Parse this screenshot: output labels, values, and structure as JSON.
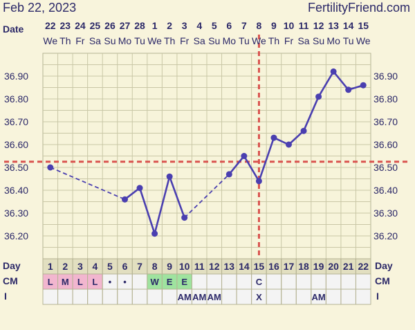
{
  "header": {
    "date": "Feb 22, 2023",
    "site": "FertilityFriend.com"
  },
  "row_labels": {
    "date": "Date",
    "day": "Day",
    "cm": "CM",
    "i": "I"
  },
  "columns": [
    {
      "date": "22",
      "dow": "We",
      "day": "1",
      "cm": "L",
      "cm_color": "#f2b6cf",
      "i": ""
    },
    {
      "date": "23",
      "dow": "Th",
      "day": "2",
      "cm": "M",
      "cm_color": "#f2b6cf",
      "i": ""
    },
    {
      "date": "24",
      "dow": "Fr",
      "day": "3",
      "cm": "L",
      "cm_color": "#f2b6cf",
      "i": ""
    },
    {
      "date": "25",
      "dow": "Sa",
      "day": "4",
      "cm": "L",
      "cm_color": "#f2b6cf",
      "i": ""
    },
    {
      "date": "26",
      "dow": "Su",
      "day": "5",
      "cm": "•",
      "cm_color": "",
      "i": ""
    },
    {
      "date": "27",
      "dow": "Mo",
      "day": "6",
      "cm": "•",
      "cm_color": "",
      "i": ""
    },
    {
      "date": "28",
      "dow": "Tu",
      "day": "7",
      "cm": "",
      "cm_color": "",
      "i": ""
    },
    {
      "date": "1",
      "dow": "We",
      "day": "8",
      "cm": "W",
      "cm_color": "#9fe39f",
      "i": ""
    },
    {
      "date": "2",
      "dow": "Th",
      "day": "9",
      "cm": "E",
      "cm_color": "#9fe39f",
      "i": ""
    },
    {
      "date": "3",
      "dow": "Fr",
      "day": "10",
      "cm": "E",
      "cm_color": "#9fe39f",
      "i": "AM"
    },
    {
      "date": "4",
      "dow": "Sa",
      "day": "11",
      "cm": "",
      "cm_color": "",
      "i": "AM"
    },
    {
      "date": "5",
      "dow": "Su",
      "day": "12",
      "cm": "",
      "cm_color": "",
      "i": "AM"
    },
    {
      "date": "6",
      "dow": "Mo",
      "day": "13",
      "cm": "",
      "cm_color": "",
      "i": ""
    },
    {
      "date": "7",
      "dow": "Tu",
      "day": "14",
      "cm": "",
      "cm_color": "",
      "i": ""
    },
    {
      "date": "8",
      "dow": "We",
      "day": "15",
      "cm": "C",
      "cm_color": "",
      "i": "X"
    },
    {
      "date": "9",
      "dow": "Th",
      "day": "16",
      "cm": "",
      "cm_color": "",
      "i": ""
    },
    {
      "date": "10",
      "dow": "Fr",
      "day": "17",
      "cm": "",
      "cm_color": "",
      "i": ""
    },
    {
      "date": "11",
      "dow": "Sa",
      "day": "18",
      "cm": "",
      "cm_color": "",
      "i": ""
    },
    {
      "date": "12",
      "dow": "Su",
      "day": "19",
      "cm": "",
      "cm_color": "",
      "i": "AM"
    },
    {
      "date": "13",
      "dow": "Mo",
      "day": "20",
      "cm": "",
      "cm_color": "",
      "i": ""
    },
    {
      "date": "14",
      "dow": "Tu",
      "day": "21",
      "cm": "",
      "cm_color": "",
      "i": ""
    },
    {
      "date": "15",
      "dow": "We",
      "day": "22",
      "cm": "",
      "cm_color": "",
      "i": ""
    }
  ],
  "chart_data": {
    "type": "line",
    "x_label": "Day",
    "y_ticks": [
      "36.20",
      "36.30",
      "36.40",
      "36.50",
      "36.60",
      "36.70",
      "36.80",
      "36.90"
    ],
    "ylim": [
      36.1,
      37.0
    ],
    "coverline": 36.525,
    "ovulation_day": 15,
    "series": [
      {
        "points": [
          {
            "day": 1,
            "temp": 36.5
          },
          {
            "day": 6,
            "temp": 36.36
          },
          {
            "day": 7,
            "temp": 36.41
          },
          {
            "day": 8,
            "temp": 36.21
          },
          {
            "day": 9,
            "temp": 36.46
          },
          {
            "day": 10,
            "temp": 36.28
          },
          {
            "day": 13,
            "temp": 36.47
          },
          {
            "day": 14,
            "temp": 36.55
          },
          {
            "day": 15,
            "temp": 36.44
          },
          {
            "day": 16,
            "temp": 36.63
          },
          {
            "day": 17,
            "temp": 36.6
          },
          {
            "day": 18,
            "temp": 36.66
          },
          {
            "day": 19,
            "temp": 36.81
          },
          {
            "day": 20,
            "temp": 36.92
          },
          {
            "day": 21,
            "temp": 36.84
          },
          {
            "day": 22,
            "temp": 36.86
          }
        ]
      }
    ],
    "colors": {
      "line": "#4a3fb0",
      "marker": "#4a3fb0",
      "coverline": "#d9534f",
      "grid": "#c9c7a6",
      "plot_bg": "#f7f4da"
    }
  }
}
